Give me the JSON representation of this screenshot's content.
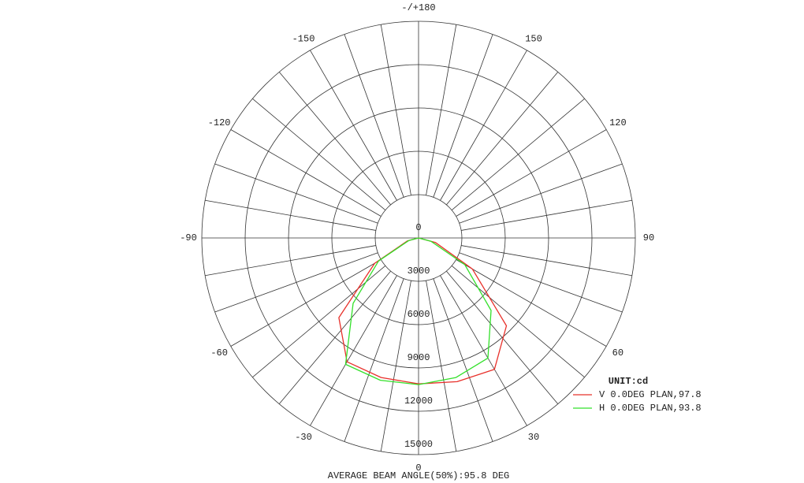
{
  "chart_data": {
    "type": "polar",
    "thetaticks": [
      {
        "value": 0,
        "label": "0"
      },
      30,
      60,
      90,
      120,
      150,
      {
        "value": 180,
        "label": "-/+180"
      },
      -150,
      -120,
      -90,
      -60,
      -30
    ],
    "rlim": [
      0,
      15000
    ],
    "rticks": [
      0,
      3000,
      6000,
      9000,
      12000,
      15000
    ],
    "theta": [
      -90,
      -75,
      -60,
      -45,
      -30,
      -15,
      0,
      15,
      30,
      45,
      60,
      75,
      90
    ],
    "series": [
      {
        "name": "V 0.0DEG PLAN,97.8",
        "color": "#e8302a",
        "values": [
          0,
          800,
          3500,
          7800,
          9900,
          10000,
          10100,
          10300,
          10500,
          8600,
          4300,
          1200,
          0
        ]
      },
      {
        "name": "H 0.0DEG PLAN,93.8",
        "color": "#33e02a",
        "values": [
          0,
          700,
          3200,
          6400,
          10100,
          10200,
          10150,
          10000,
          9600,
          7100,
          3700,
          900,
          0
        ]
      }
    ],
    "legend_title": "UNIT:cd",
    "legend": "bottom-right",
    "footer": "AVERAGE BEAM ANGLE(50%):95.8 DEG"
  }
}
